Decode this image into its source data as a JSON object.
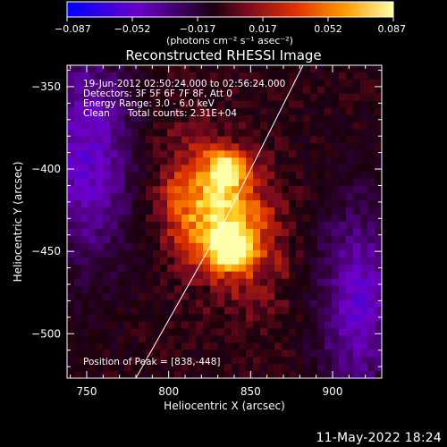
{
  "chart_data": {
    "type": "heatmap",
    "title": "Reconstructed RHESSI Image",
    "xlabel": "Heliocentric X (arcsec)",
    "ylabel": "Heliocentric Y (arcsec)",
    "xlim": [
      738,
      930
    ],
    "ylim": [
      -527,
      -337
    ],
    "x_ticks": [
      750,
      800,
      850,
      900
    ],
    "y_ticks": [
      -350,
      -400,
      -450,
      -500
    ],
    "colorbar": {
      "min": -0.087,
      "max": 0.087,
      "tick_labels": [
        "-0.087",
        "-0.052",
        "-0.017",
        "0.017",
        "0.052",
        "0.087"
      ],
      "unit_label": "(photons cm⁻² s⁻¹ asec⁻²)",
      "colormap": [
        "#0000ff",
        "#7a00c0",
        "#000000",
        "#c81a00",
        "#ff8c00",
        "#ffff90"
      ]
    },
    "annotations": {
      "time_range": "19-Jun-2012 02:50:24.000 to 02:56:24.000",
      "detectors": "Detectors: 3F 5F 6F 7F 8F, Att 0",
      "energy": "Energy Range: 3.0 - 6.0 keV",
      "method": "Clean",
      "counts": "Total counts: 2.31E+04",
      "peak": "Position of Peak = [838,-448]"
    },
    "sources": [
      {
        "x": 838,
        "y": -448,
        "peak": 0.087,
        "sigma_arcsec": 9
      },
      {
        "x": 835,
        "y": -400,
        "peak": 0.062,
        "sigma_arcsec": 8
      },
      {
        "x": 828,
        "y": -425,
        "peak": 0.045,
        "sigma_arcsec": 20
      }
    ],
    "limb": [
      [
        780,
        -527
      ],
      [
        835,
        -430
      ],
      [
        882,
        -337
      ]
    ],
    "grid": false
  },
  "footer_date": "11-May-2022 18:24"
}
